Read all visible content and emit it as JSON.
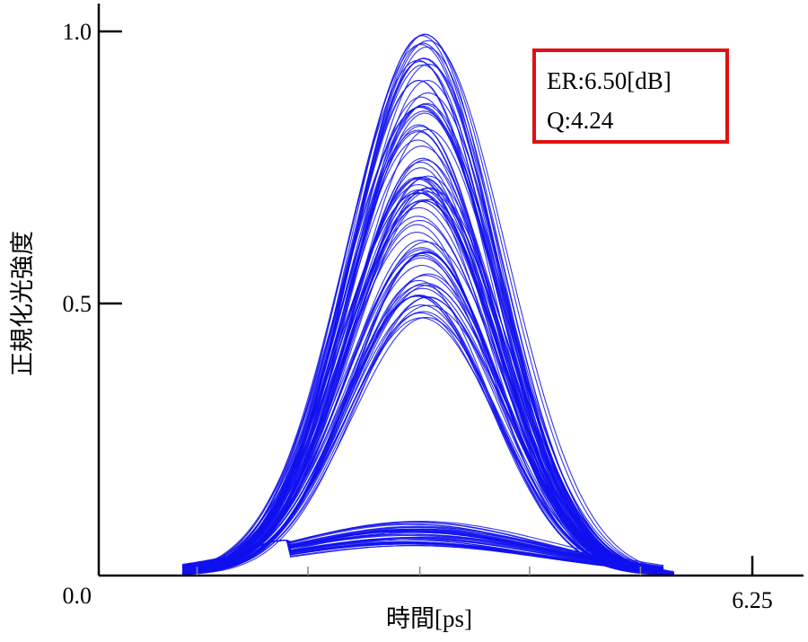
{
  "chart_data": {
    "type": "line",
    "plot_kind": "eye-diagram",
    "xlabel_main": "時間",
    "xlabel_unit": "[ps]",
    "ylabel": "正規化光強度",
    "xlim": [
      0,
      6.25
    ],
    "ylim": [
      0,
      1.0
    ],
    "x_tick_labels": [
      {
        "value": 6.25,
        "label": "6.25"
      }
    ],
    "x_minor_ticks": [
      0.94,
      2.0,
      3.07,
      4.12,
      5.18
    ],
    "y_ticks": [
      {
        "value": 0.0,
        "label": "0.0"
      },
      {
        "value": 0.5,
        "label": "0.5"
      },
      {
        "value": 1.0,
        "label": "1.0"
      }
    ],
    "series_color": "#1010ee",
    "pulse_center": 3.1,
    "one_level_peaks": {
      "min": 0.47,
      "max": 1.0,
      "count": 90
    },
    "zero_level_peaks": {
      "min": 0.055,
      "max": 0.1,
      "count": 40
    },
    "annotation": {
      "lines": [
        "ER:6.50[dB]",
        "Q:4.24"
      ],
      "border_color": "#e01010"
    },
    "grid": false,
    "legend": false
  }
}
